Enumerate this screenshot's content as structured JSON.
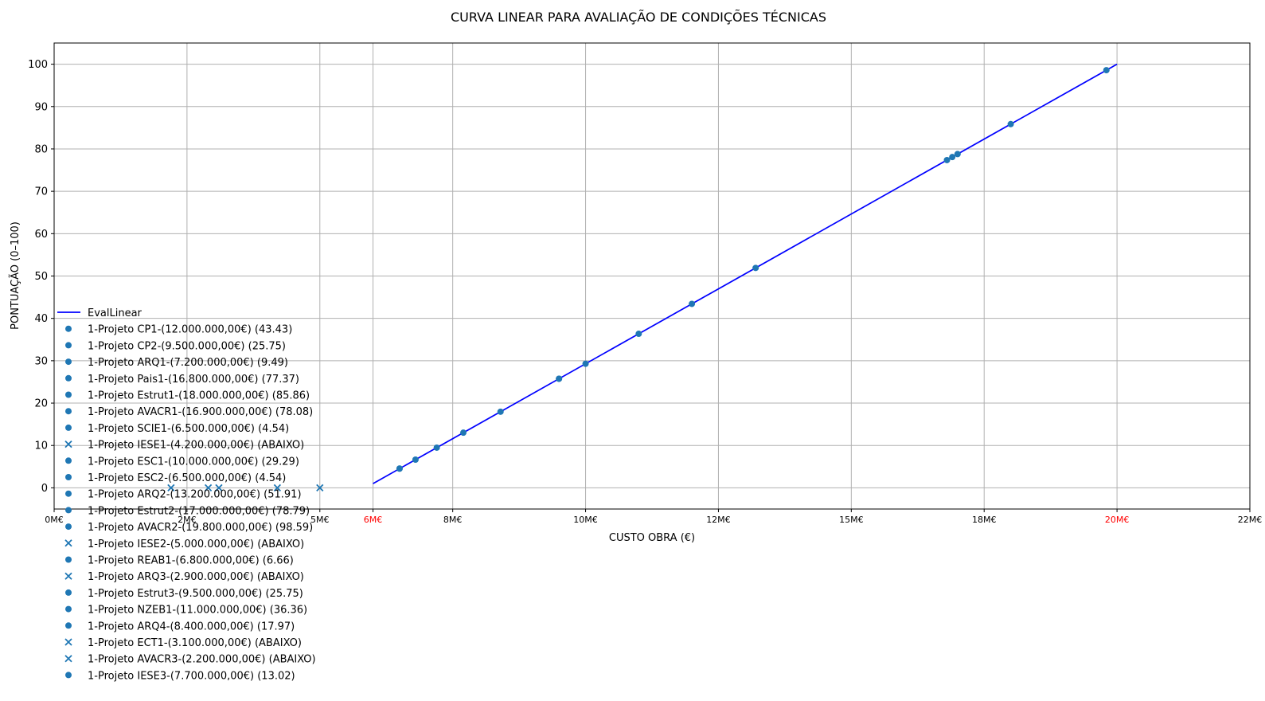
{
  "chart_data": {
    "type": "scatter",
    "title": "CURVA LINEAR PARA AVALIAÇÃO DE CONDIÇÕES TÉCNICAS",
    "xlabel": "CUSTO OBRA (€)",
    "ylabel": "PONTUAÇÃO (0–100)",
    "xlim": [
      0,
      22500000
    ],
    "ylim": [
      -5,
      105
    ],
    "grid": true,
    "legend_position": "lower-left",
    "x_ticks": [
      {
        "value": 0,
        "label": "0M€",
        "highlight": false
      },
      {
        "value": 2500000,
        "label": "2M€",
        "highlight": false
      },
      {
        "value": 5000000,
        "label": "5M€",
        "highlight": false
      },
      {
        "value": 6000000,
        "label": "6M€",
        "highlight": true
      },
      {
        "value": 7500000,
        "label": "8M€",
        "highlight": false
      },
      {
        "value": 10000000,
        "label": "10M€",
        "highlight": false
      },
      {
        "value": 12500000,
        "label": "12M€",
        "highlight": false
      },
      {
        "value": 15000000,
        "label": "15M€",
        "highlight": false
      },
      {
        "value": 17500000,
        "label": "18M€",
        "highlight": false
      },
      {
        "value": 20000000,
        "label": "20M€",
        "highlight": true
      },
      {
        "value": 22500000,
        "label": "22M€",
        "highlight": false
      }
    ],
    "y_ticks": [
      0,
      10,
      20,
      30,
      40,
      50,
      60,
      70,
      80,
      90,
      100
    ],
    "line": {
      "name": "EvalLinear",
      "x": [
        6000000,
        20000000
      ],
      "y": [
        1,
        100
      ],
      "color": "#0000ff"
    },
    "marker_color": "#1f77b4",
    "highlight_color": "#ff0000",
    "points": [
      {
        "label": "1-Projeto CP1-(12.000.000,00€) (43.43)",
        "x": 12000000,
        "y": 43.43,
        "marker": "circle"
      },
      {
        "label": "1-Projeto CP2-(9.500.000,00€) (25.75)",
        "x": 9500000,
        "y": 25.75,
        "marker": "circle"
      },
      {
        "label": "1-Projeto ARQ1-(7.200.000,00€) (9.49)",
        "x": 7200000,
        "y": 9.49,
        "marker": "circle"
      },
      {
        "label": "1-Projeto Pais1-(16.800.000,00€) (77.37)",
        "x": 16800000,
        "y": 77.37,
        "marker": "circle"
      },
      {
        "label": "1-Projeto Estrut1-(18.000.000,00€) (85.86)",
        "x": 18000000,
        "y": 85.86,
        "marker": "circle"
      },
      {
        "label": "1-Projeto AVACR1-(16.900.000,00€) (78.08)",
        "x": 16900000,
        "y": 78.08,
        "marker": "circle"
      },
      {
        "label": "1-Projeto SCIE1-(6.500.000,00€) (4.54)",
        "x": 6500000,
        "y": 4.54,
        "marker": "circle"
      },
      {
        "label": "1-Projeto IESE1-(4.200.000,00€) (ABAIXO)",
        "x": 4200000,
        "y": 0,
        "marker": "x"
      },
      {
        "label": "1-Projeto ESC1-(10.000.000,00€) (29.29)",
        "x": 10000000,
        "y": 29.29,
        "marker": "circle"
      },
      {
        "label": "1-Projeto ESC2-(6.500.000,00€) (4.54)",
        "x": 6500000,
        "y": 4.54,
        "marker": "circle"
      },
      {
        "label": "1-Projeto ARQ2-(13.200.000,00€) (51.91)",
        "x": 13200000,
        "y": 51.91,
        "marker": "circle"
      },
      {
        "label": "1-Projeto Estrut2-(17.000.000,00€) (78.79)",
        "x": 17000000,
        "y": 78.79,
        "marker": "circle"
      },
      {
        "label": "1-Projeto AVACR2-(19.800.000,00€) (98.59)",
        "x": 19800000,
        "y": 98.59,
        "marker": "circle"
      },
      {
        "label": "1-Projeto IESE2-(5.000.000,00€) (ABAIXO)",
        "x": 5000000,
        "y": 0,
        "marker": "x"
      },
      {
        "label": "1-Projeto REAB1-(6.800.000,00€) (6.66)",
        "x": 6800000,
        "y": 6.66,
        "marker": "circle"
      },
      {
        "label": "1-Projeto ARQ3-(2.900.000,00€) (ABAIXO)",
        "x": 2900000,
        "y": 0,
        "marker": "x"
      },
      {
        "label": "1-Projeto Estrut3-(9.500.000,00€) (25.75)",
        "x": 9500000,
        "y": 25.75,
        "marker": "circle"
      },
      {
        "label": "1-Projeto NZEB1-(11.000.000,00€) (36.36)",
        "x": 11000000,
        "y": 36.36,
        "marker": "circle"
      },
      {
        "label": "1-Projeto ARQ4-(8.400.000,00€) (17.97)",
        "x": 8400000,
        "y": 17.97,
        "marker": "circle"
      },
      {
        "label": "1-Projeto ECT1-(3.100.000,00€) (ABAIXO)",
        "x": 3100000,
        "y": 0,
        "marker": "x"
      },
      {
        "label": "1-Projeto AVACR3-(2.200.000,00€) (ABAIXO)",
        "x": 2200000,
        "y": 0,
        "marker": "x"
      },
      {
        "label": "1-Projeto IESE3-(7.700.000,00€) (13.02)",
        "x": 7700000,
        "y": 13.02,
        "marker": "circle"
      }
    ]
  }
}
